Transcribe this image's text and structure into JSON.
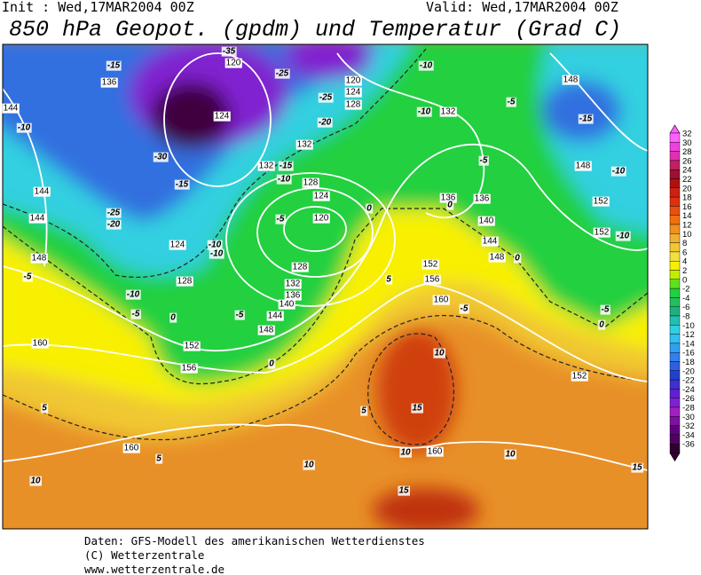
{
  "header": {
    "init": "Init : Wed,17MAR2004 00Z",
    "valid": "Valid: Wed,17MAR2004 00Z",
    "title": "850 hPa Geopot. (gpdm) und Temperatur (Grad C)"
  },
  "footer": {
    "lines": [
      "Daten: GFS-Modell des amerikanischen Wetterdienstes",
      "(C) Wetterzentrale",
      "www.wetterzentrale.de"
    ]
  },
  "colorbar": {
    "ticks": [
      32,
      30,
      28,
      26,
      24,
      22,
      20,
      18,
      16,
      14,
      12,
      10,
      8,
      6,
      4,
      2,
      0,
      -2,
      -4,
      -6,
      -8,
      -10,
      -12,
      -14,
      -16,
      -18,
      -20,
      -22,
      -24,
      -26,
      -28,
      -30,
      -32,
      -34,
      -36
    ],
    "colors": [
      "#ff60ff",
      "#f040e0",
      "#e030b0",
      "#c02060",
      "#a01030",
      "#b01010",
      "#d02010",
      "#e03010",
      "#e85010",
      "#f07010",
      "#f09020",
      "#f0b030",
      "#f0c830",
      "#f0e040",
      "#f8f000",
      "#c0f000",
      "#60e020",
      "#20d040",
      "#20c060",
      "#20b080",
      "#20c0b0",
      "#30d0e0",
      "#30c0f0",
      "#30a0f0",
      "#3080f0",
      "#3060e0",
      "#2040d0",
      "#4030d0",
      "#6020d0",
      "#8020d0",
      "#a020c0",
      "#8010a0",
      "#600080",
      "#500060",
      "#300030"
    ]
  },
  "map": {
    "geopotential_labels": [
      136,
      144,
      144,
      144,
      148,
      124,
      128,
      120,
      124,
      132,
      132,
      128,
      124,
      120,
      128,
      132,
      136,
      140,
      144,
      148,
      152,
      156,
      120,
      124,
      128,
      132,
      136,
      136,
      140,
      144,
      148,
      152,
      156,
      160,
      160,
      160,
      160,
      148,
      148,
      152,
      152,
      152
    ],
    "temperature_labels": [
      -35,
      -15,
      -10,
      -25,
      -25,
      -20,
      -10,
      -5,
      -15,
      -10,
      -30,
      -15,
      -15,
      -10,
      -5,
      -10,
      -25,
      -20,
      -10,
      -10,
      -5,
      0,
      0,
      -10,
      -5,
      -10,
      -5,
      0,
      -5,
      5,
      -5,
      0,
      -5,
      0,
      0,
      10,
      5,
      5,
      15,
      10,
      5,
      10,
      10,
      10,
      15,
      15
    ]
  }
}
